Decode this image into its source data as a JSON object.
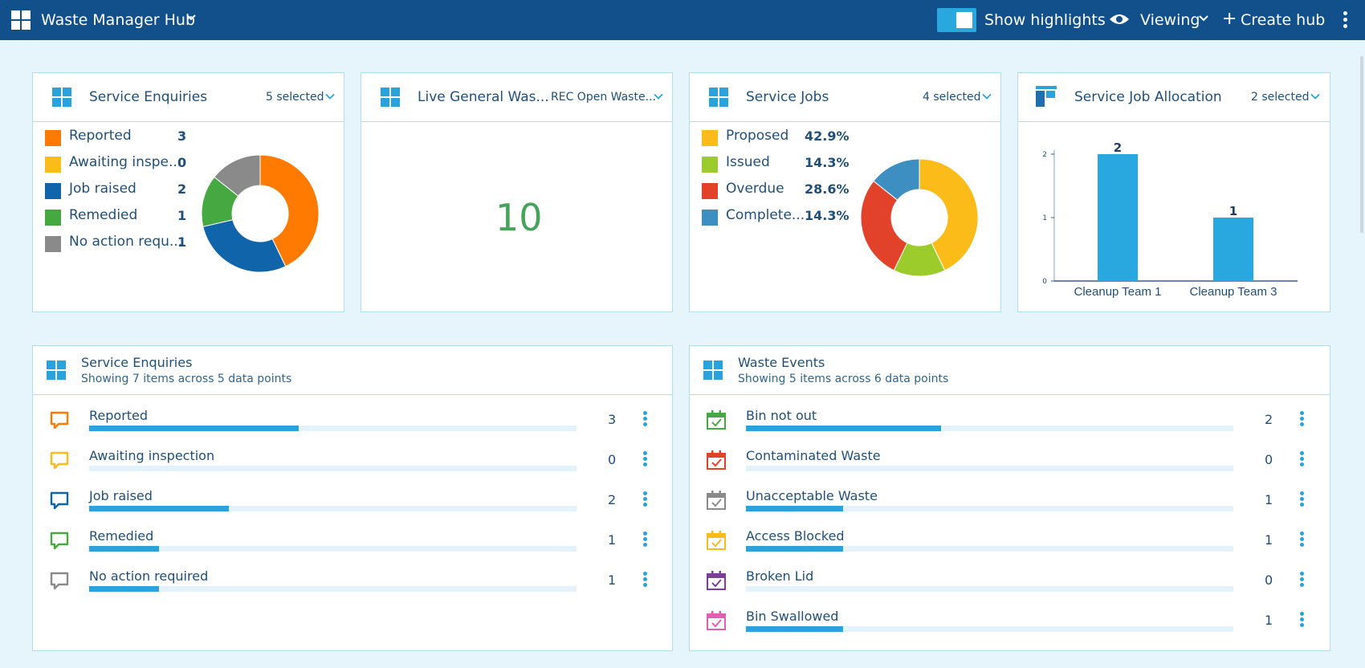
{
  "topbar": {
    "title": "Waste Manager Hub",
    "highlights_label": "Show highlights",
    "viewing_label": "Viewing",
    "create_label": "Create hub"
  },
  "colors": {
    "orange": "#ff7a00",
    "amber": "#fbbb19",
    "blue": "#0f64aa",
    "green": "#45a841",
    "grey": "#8a8a8a",
    "lime": "#9ccb2c",
    "red": "#e2412a",
    "steel": "#3d8fc2",
    "accent": "#2aa3dd",
    "purple": "#7b3f9b",
    "pink": "#e05fb0"
  },
  "cards": {
    "enquiries": {
      "title": "Service Enquiries",
      "selected": "5 selected",
      "legend": [
        {
          "label": "Reported",
          "value": "3",
          "color": "#ff7a00"
        },
        {
          "label": "Awaiting inspe...",
          "value": "0",
          "color": "#fbbb19"
        },
        {
          "label": "Job raised",
          "value": "2",
          "color": "#0f64aa"
        },
        {
          "label": "Remedied",
          "value": "1",
          "color": "#45a841"
        },
        {
          "label": "No action requ...",
          "value": "1",
          "color": "#8a8a8a"
        }
      ]
    },
    "live": {
      "title": "Live General Was...",
      "selected": "REC Open Waste...",
      "value": "10"
    },
    "jobs": {
      "title": "Service Jobs",
      "selected": "4 selected",
      "legend": [
        {
          "label": "Proposed",
          "value": "42.9%",
          "color": "#fbbb19"
        },
        {
          "label": "Issued",
          "value": "14.3%",
          "color": "#9ccb2c"
        },
        {
          "label": "Overdue",
          "value": "28.6%",
          "color": "#e2412a"
        },
        {
          "label": "Complete...",
          "value": "14.3%",
          "color": "#3d8fc2"
        }
      ]
    },
    "allocation": {
      "title": "Service Job Allocation",
      "selected": "2 selected"
    },
    "enquiries_list": {
      "title": "Service Enquiries",
      "subtitle": "Showing 7 items across 5 data points",
      "rows": [
        {
          "label": "Reported",
          "count": "3",
          "fraction": 0.43,
          "color": "#ff7a00"
        },
        {
          "label": "Awaiting inspection",
          "count": "0",
          "fraction": 0,
          "color": "#fbbb19"
        },
        {
          "label": "Job raised",
          "count": "2",
          "fraction": 0.286,
          "color": "#0f64aa"
        },
        {
          "label": "Remedied",
          "count": "1",
          "fraction": 0.143,
          "color": "#45a841"
        },
        {
          "label": "No action required",
          "count": "1",
          "fraction": 0.143,
          "color": "#8a8a8a"
        }
      ]
    },
    "events_list": {
      "title": "Waste Events",
      "subtitle": "Showing 5 items across 6 data points",
      "rows": [
        {
          "label": "Bin not out",
          "count": "2",
          "fraction": 0.4,
          "color": "#45a841"
        },
        {
          "label": "Contaminated Waste",
          "count": "0",
          "fraction": 0,
          "color": "#e2412a"
        },
        {
          "label": "Unacceptable Waste",
          "count": "1",
          "fraction": 0.2,
          "color": "#8a8a8a"
        },
        {
          "label": "Access Blocked",
          "count": "1",
          "fraction": 0.2,
          "color": "#fbbb19"
        },
        {
          "label": "Broken Lid",
          "count": "0",
          "fraction": 0,
          "color": "#7b3f9b"
        },
        {
          "label": "Bin Swallowed",
          "count": "1",
          "fraction": 0.2,
          "color": "#e05fb0"
        }
      ]
    }
  },
  "chart_data": [
    {
      "type": "pie",
      "categories": [
        "Reported",
        "Awaiting inspe...",
        "Job raised",
        "Remedied",
        "No action requ..."
      ],
      "values": [
        3,
        0,
        2,
        1,
        1
      ],
      "colors": [
        "#ff7a00",
        "#fbbb19",
        "#0f64aa",
        "#45a841",
        "#8a8a8a"
      ]
    },
    {
      "type": "pie",
      "categories": [
        "Proposed",
        "Issued",
        "Overdue",
        "Complete..."
      ],
      "values": [
        42.9,
        14.3,
        28.6,
        14.3
      ],
      "colors": [
        "#fbbb19",
        "#9ccb2c",
        "#e2412a",
        "#3d8fc2"
      ]
    },
    {
      "type": "bar",
      "categories": [
        "Cleanup Team 1",
        "Cleanup Team 3"
      ],
      "values": [
        2,
        1
      ],
      "data_labels": [
        "2",
        "1"
      ],
      "yticks": [
        "0",
        "1",
        "2"
      ],
      "ylim": [
        0,
        2
      ],
      "color": "#29a8e0"
    }
  ]
}
